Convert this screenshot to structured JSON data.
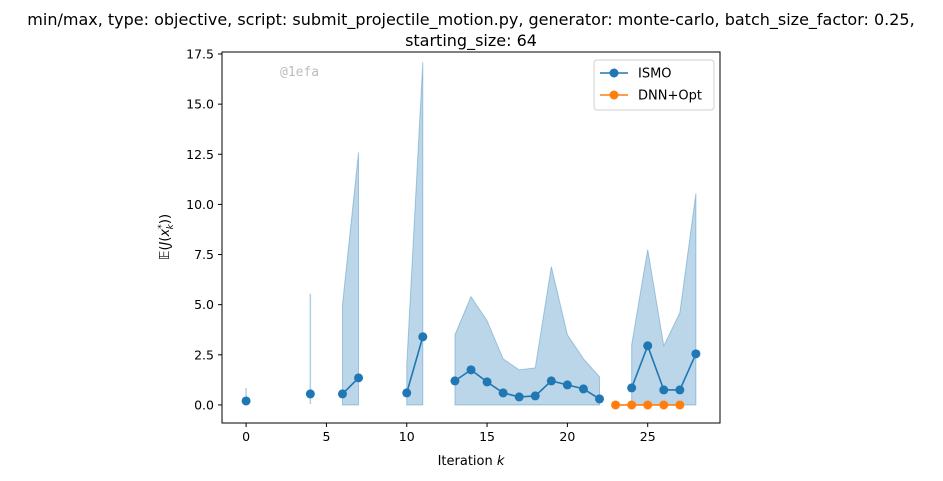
{
  "chart_data": {
    "type": "line",
    "title_line1": "min/max, type: objective, script: submit_projectile_motion.py, generator: monte-carlo, batch_size_factor: 0.25,",
    "title_line2": "starting_size: 64",
    "xlabel": "Iteration k",
    "ylabel": "𝔼(J(x*k))",
    "xlim": [
      -1.5,
      29.5
    ],
    "ylim": [
      -0.9,
      17.6
    ],
    "xticks": [
      0,
      5,
      10,
      15,
      20,
      25
    ],
    "yticks": [
      0.0,
      2.5,
      5.0,
      7.5,
      10.0,
      12.5,
      15.0,
      17.5
    ],
    "ytick_labels": [
      "0.0",
      "2.5",
      "5.0",
      "7.5",
      "10.0",
      "12.5",
      "15.0",
      "17.5"
    ],
    "watermark": "@1efa",
    "legend_position": "top-right",
    "series": [
      {
        "name": "ISMO",
        "color": "#1f77b4",
        "segments": [
          [
            [
              0,
              0.2
            ]
          ],
          [
            [
              4,
              0.55
            ]
          ],
          [
            [
              6,
              0.55
            ],
            [
              7,
              1.35
            ]
          ],
          [
            [
              10,
              0.6
            ],
            [
              11,
              3.4
            ]
          ],
          [
            [
              13,
              1.2
            ],
            [
              14,
              1.75
            ],
            [
              15,
              1.15
            ],
            [
              16,
              0.6
            ],
            [
              17,
              0.4
            ],
            [
              18,
              0.45
            ],
            [
              19,
              1.2
            ],
            [
              20,
              1.0
            ],
            [
              21,
              0.8
            ],
            [
              22,
              0.3
            ]
          ],
          [
            [
              24,
              0.85
            ],
            [
              25,
              2.95
            ],
            [
              26,
              0.75
            ],
            [
              27,
              0.75
            ],
            [
              28,
              2.55
            ]
          ]
        ],
        "band_color": "#1f77b4",
        "bands": [
          [
            [
              0,
              0.05,
              0.85
            ]
          ],
          [
            [
              4,
              0.05,
              5.55
            ]
          ],
          [
            [
              6,
              0.0,
              5.0
            ],
            [
              7,
              0.0,
              12.6
            ]
          ],
          [
            [
              10,
              0.0,
              2.0
            ],
            [
              11,
              0.0,
              17.1
            ]
          ],
          [
            [
              13,
              0.0,
              3.5
            ],
            [
              14,
              0.0,
              5.4
            ],
            [
              15,
              0.0,
              4.2
            ],
            [
              16,
              0.0,
              2.3
            ],
            [
              17,
              0.0,
              1.75
            ],
            [
              18,
              0.0,
              1.85
            ],
            [
              19,
              0.0,
              6.9
            ],
            [
              20,
              0.0,
              3.5
            ],
            [
              21,
              0.0,
              2.3
            ],
            [
              22,
              0.0,
              1.4
            ]
          ],
          [
            [
              24,
              0.0,
              3.0
            ],
            [
              25,
              0.0,
              7.75
            ],
            [
              26,
              0.0,
              2.95
            ],
            [
              27,
              0.0,
              4.6
            ],
            [
              28,
              0.0,
              10.55
            ]
          ]
        ]
      },
      {
        "name": "DNN+Opt",
        "color": "#ff7f0e",
        "segments": [
          [
            [
              23,
              0.0
            ],
            [
              24,
              0.0
            ],
            [
              25,
              0.0
            ],
            [
              26,
              0.0
            ],
            [
              27,
              0.0
            ]
          ]
        ]
      }
    ]
  }
}
